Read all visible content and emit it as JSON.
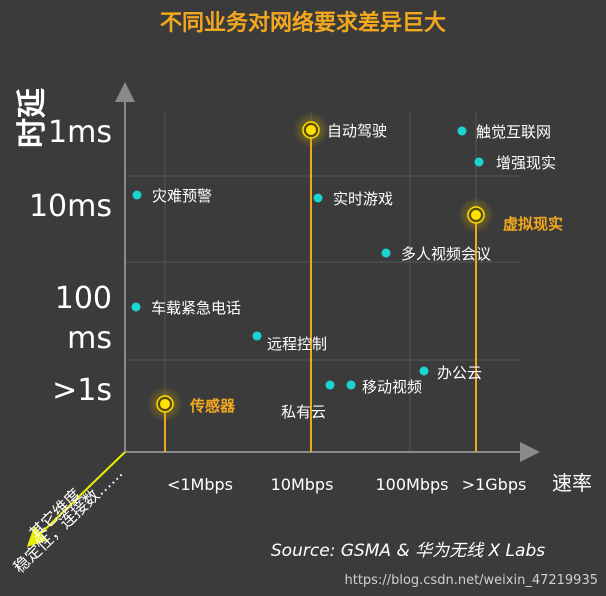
{
  "chart_data": {
    "type": "scatter",
    "title": "不同业务对网络要求差异巨大",
    "ylabel": "时延",
    "xlabel": "速率",
    "other_dimension_label": [
      "其它维度",
      "稳定性，连接数……"
    ],
    "x_ticks": [
      "<1Mbps",
      "10Mbps",
      "100Mbps",
      ">1Gbps"
    ],
    "y_ticks": [
      "1ms",
      "10ms",
      "100 ms",
      ">1s"
    ],
    "points": [
      {
        "label": "自动驾驶",
        "x": "10Mbps",
        "y": "1ms",
        "highlight": true
      },
      {
        "label": "触觉互联网",
        "x": ">1Gbps",
        "y": "1ms",
        "highlight": false
      },
      {
        "label": "增强现实",
        "x": ">1Gbps",
        "y": "1ms",
        "highlight": false
      },
      {
        "label": "灾难预警",
        "x": "<1Mbps",
        "y": "10ms",
        "highlight": false
      },
      {
        "label": "实时游戏",
        "x": "10Mbps",
        "y": "10ms",
        "highlight": false
      },
      {
        "label": "虚拟现实",
        "x": ">1Gbps",
        "y": "10ms",
        "highlight": true
      },
      {
        "label": "多人视频会议",
        "x": "100Mbps",
        "y": "10ms",
        "highlight": false
      },
      {
        "label": "车载紧急电话",
        "x": "<1Mbps",
        "y": "100 ms",
        "highlight": false
      },
      {
        "label": "远程控制",
        "x": "<1Mbps",
        "y": "100 ms",
        "highlight": false
      },
      {
        "label": "办公云",
        "x": "100Mbps",
        "y": ">1s",
        "highlight": false
      },
      {
        "label": "移动视频",
        "x": "100Mbps",
        "y": ">1s",
        "highlight": false
      },
      {
        "label": "私有云",
        "x": "10Mbps",
        "y": ">1s",
        "highlight": false
      },
      {
        "label": "传感器",
        "x": "<1Mbps",
        "y": ">1s",
        "highlight": true
      }
    ],
    "grid": true,
    "colors": {
      "background": "#3b3b3b",
      "accent": "#f2a81d",
      "point": "#1ad4d0",
      "highlight_point": "#ffe200",
      "axis": "#8a8a8a",
      "other_dim_arrow": "#e8f000"
    }
  },
  "source": "Source: GSMA & 华为无线 X Labs",
  "watermark": "https://blog.csdn.net/weixin_47219935"
}
